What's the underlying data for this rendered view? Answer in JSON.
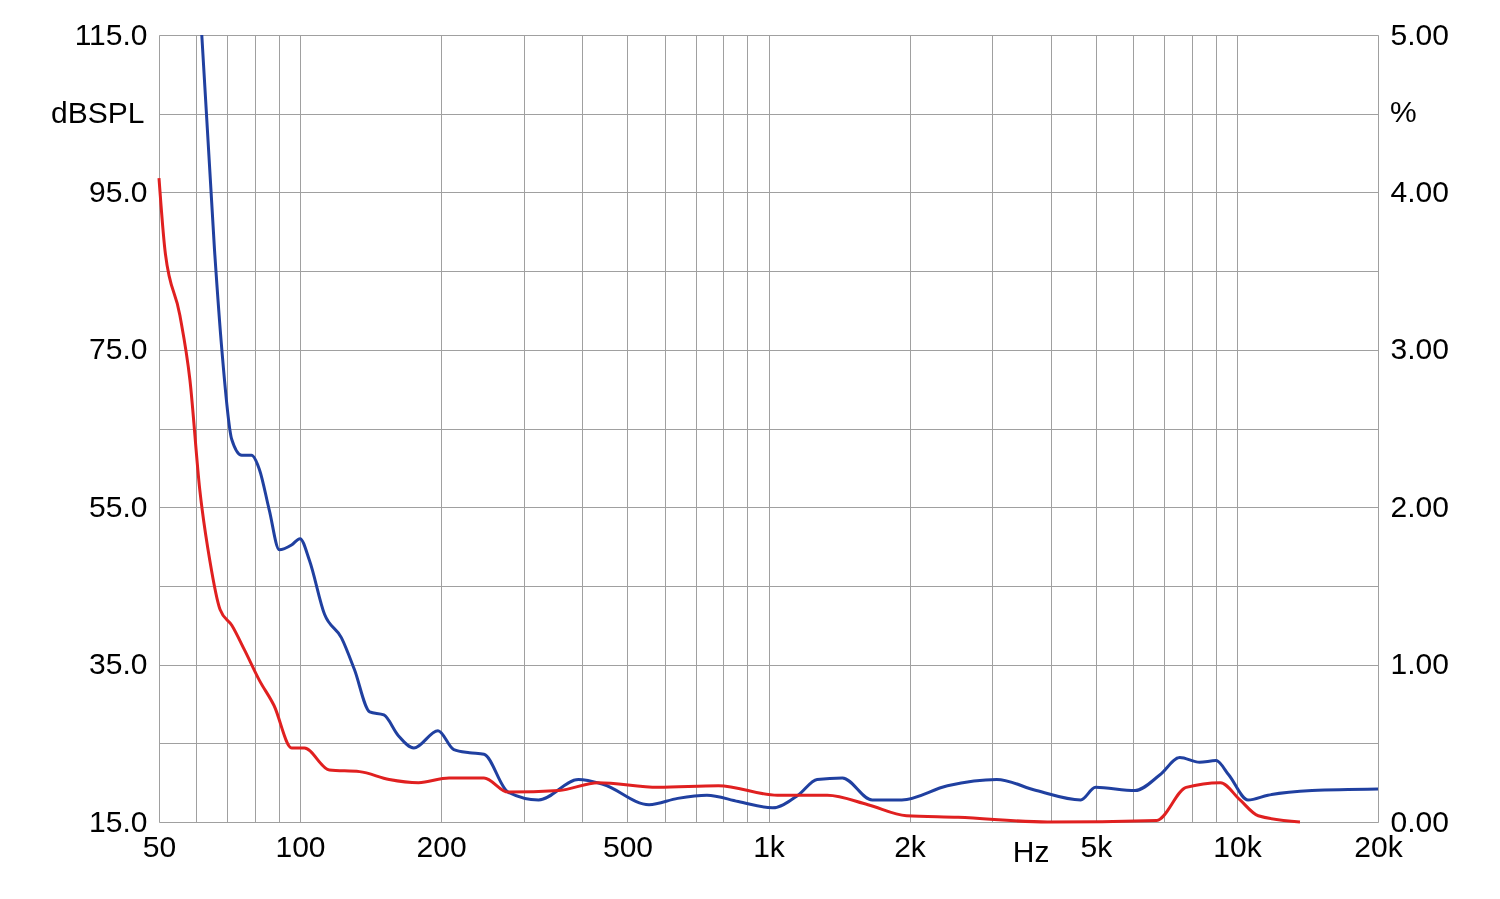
{
  "chart_data": {
    "type": "line",
    "xlabel": "Hz",
    "ylabel": "dBSPL",
    "y2label": "%",
    "log": "x",
    "grid": true,
    "line_style": "solid",
    "marker": "none",
    "xlim": [
      50,
      20000
    ],
    "xticks": [
      50,
      {
        "value": 60,
        "label": null
      },
      {
        "value": 70,
        "label": null
      },
      {
        "value": 80,
        "label": null
      },
      {
        "value": 90,
        "label": null
      },
      100,
      200,
      {
        "value": 300,
        "label": null
      },
      {
        "value": 400,
        "label": null
      },
      500,
      {
        "value": 600,
        "label": null
      },
      {
        "value": 700,
        "label": null
      },
      {
        "value": 800,
        "label": null
      },
      {
        "value": 900,
        "label": null
      },
      {
        "value": 1000,
        "label": "1k"
      },
      {
        "value": 2000,
        "label": "2k"
      },
      {
        "value": 3000,
        "label": null
      },
      {
        "value": 4000,
        "label": null
      },
      {
        "value": 5000,
        "label": "5k"
      },
      {
        "value": 6000,
        "label": null
      },
      {
        "value": 7000,
        "label": null
      },
      {
        "value": 8000,
        "label": null
      },
      {
        "value": 9000,
        "label": null
      },
      {
        "value": 10000,
        "label": "10k"
      },
      {
        "value": 20000,
        "label": "20k"
      }
    ],
    "ylim": [
      15,
      115
    ],
    "yticks": [
      {
        "value": 15,
        "label": "15.0"
      },
      {
        "value": 25,
        "label": null
      },
      {
        "value": 35,
        "label": "35.0"
      },
      {
        "value": 45,
        "label": null
      },
      {
        "value": 55,
        "label": "55.0"
      },
      {
        "value": 65,
        "label": null
      },
      {
        "value": 75,
        "label": "75.0"
      },
      {
        "value": 85,
        "label": null
      },
      {
        "value": 95,
        "label": "95.0"
      },
      {
        "value": 105,
        "label": null
      },
      {
        "value": 115,
        "label": "115.0"
      }
    ],
    "y2lim": [
      0,
      5
    ],
    "y2ticks": [
      {
        "value": 0,
        "label": "0.00"
      },
      {
        "value": 0.5,
        "label": null
      },
      {
        "value": 1,
        "label": "1.00"
      },
      {
        "value": 1.5,
        "label": null
      },
      {
        "value": 2,
        "label": "2.00"
      },
      {
        "value": 2.5,
        "label": null
      },
      {
        "value": 3,
        "label": "3.00"
      },
      {
        "value": 3.5,
        "label": null
      },
      {
        "value": 4,
        "label": "4.00"
      },
      {
        "value": 4.5,
        "label": null
      },
      {
        "value": 5,
        "label": "5.00"
      }
    ],
    "series": [
      {
        "color": "#2040a0",
        "axis": "y2",
        "x": [
          61.7,
          65.7,
          68.1,
          71.5,
          75.1,
          78.8,
          81.9,
          86,
          90.3,
          95.9,
          100,
          104.8,
          112.8,
          122.6,
          130.6,
          140.8,
          151,
          162,
          175,
          197,
          213,
          230,
          247,
          278,
          323,
          393,
          443,
          556,
          640,
          739,
          862,
          1020,
          1156,
          1270,
          1438,
          1665,
          1925,
          2410,
          3070,
          3730,
          4640,
          4990,
          6060,
          6850,
          7550,
          8320,
          9020,
          9600,
          10560,
          11640,
          14460,
          20000
        ],
        "values": [
          5.0,
          3.63,
          3.0,
          2.43,
          2.33,
          2.33,
          2.24,
          1.98,
          1.73,
          1.76,
          1.8,
          1.66,
          1.32,
          1.17,
          0.97,
          0.7,
          0.68,
          0.55,
          0.47,
          0.58,
          0.46,
          0.44,
          0.43,
          0.19,
          0.14,
          0.27,
          0.24,
          0.11,
          0.15,
          0.17,
          0.13,
          0.09,
          0.17,
          0.27,
          0.28,
          0.14,
          0.14,
          0.23,
          0.27,
          0.2,
          0.14,
          0.22,
          0.2,
          0.3,
          0.41,
          0.38,
          0.39,
          0.3,
          0.14,
          0.17,
          0.2,
          0.21
        ]
      },
      {
        "color": "#e02020",
        "axis": "y2",
        "x": [
          50,
          51.5,
          55.4,
          58.2,
          61.1,
          64.2,
          67.5,
          71.5,
          76.2,
          81.9,
          88,
          96,
          102.2,
          115.5,
          134,
          155,
          179,
          208,
          247,
          278,
          357,
          433,
          581,
          782,
          1045,
          1335,
          1630,
          1970,
          2540,
          3940,
          6740,
          7790,
          9220,
          10150,
          11100,
          13630
        ],
        "values": [
          4.09,
          3.63,
          3.22,
          2.81,
          2.11,
          1.66,
          1.35,
          1.25,
          1.09,
          0.9,
          0.74,
          0.47,
          0.47,
          0.33,
          0.32,
          0.27,
          0.25,
          0.28,
          0.28,
          0.19,
          0.2,
          0.25,
          0.22,
          0.23,
          0.17,
          0.17,
          0.11,
          0.04,
          0.03,
          0.0,
          0.01,
          0.22,
          0.25,
          0.14,
          0.04,
          0.0
        ]
      }
    ]
  }
}
